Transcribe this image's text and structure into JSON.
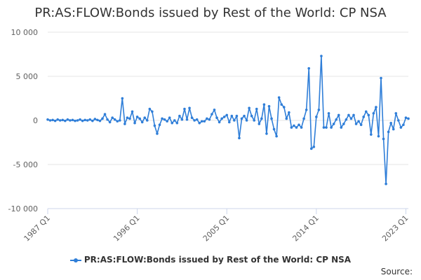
{
  "chart_data": {
    "type": "line",
    "title": "PR:AS:FLOW:Bonds issued by Rest of the World: CP NSA",
    "xlabel": "",
    "ylabel": "",
    "ylim": [
      -10000,
      10000
    ],
    "y_ticks": [
      10000,
      5000,
      0,
      -5000,
      -10000
    ],
    "y_tick_labels": [
      "10 000",
      "5 000",
      "0",
      "-5 000",
      "-10 000"
    ],
    "x_tick_labels": [
      "1987 Q1",
      "1996 Q1",
      "2005 Q1",
      "2014 Q1",
      "2023 Q1"
    ],
    "x_tick_index": [
      0,
      36,
      72,
      108,
      144
    ],
    "grid": "horizontal",
    "legend_position": "bottom",
    "series_color": "#2f7ed8",
    "series": [
      {
        "name": "PR:AS:FLOW:Bonds issued by Rest of the World: CP NSA",
        "x_start": "1987 Q1",
        "x_end": "2023 Q2",
        "values": [
          100,
          0,
          50,
          -50,
          100,
          0,
          50,
          -50,
          100,
          0,
          50,
          -50,
          0,
          100,
          -50,
          50,
          0,
          100,
          -50,
          150,
          50,
          -50,
          200,
          700,
          100,
          -200,
          300,
          100,
          -100,
          0,
          2500,
          -400,
          300,
          200,
          1000,
          -300,
          400,
          200,
          -200,
          300,
          0,
          1300,
          1000,
          -600,
          -1500,
          -500,
          200,
          100,
          -100,
          300,
          -300,
          0,
          -300,
          500,
          100,
          1300,
          100,
          1400,
          300,
          0,
          100,
          -300,
          -100,
          -100,
          200,
          100,
          700,
          1200,
          300,
          -200,
          200,
          400,
          600,
          -200,
          500,
          0,
          500,
          -2000,
          200,
          500,
          0,
          1400,
          500,
          0,
          1300,
          -400,
          200,
          1800,
          -1500,
          1600,
          200,
          -1000,
          -1800,
          2600,
          1800,
          1500,
          200,
          900,
          -800,
          -600,
          -800,
          -500,
          -800,
          200,
          1200,
          5900,
          -3200,
          -3000,
          400,
          1200,
          7300,
          -800,
          -800,
          800,
          -800,
          -400,
          100,
          600,
          -800,
          -400,
          100,
          600,
          200,
          600,
          -400,
          -100,
          -500,
          400,
          1000,
          600,
          -1600,
          800,
          1500,
          -1800,
          4800,
          -2100,
          -7200,
          -1300,
          -300,
          -1000,
          800,
          0,
          -800,
          -500,
          300,
          200
        ]
      }
    ]
  },
  "legend": {
    "label": "PR:AS:FLOW:Bonds issued by Rest of the World: CP NSA"
  },
  "source": {
    "label": "Source:"
  }
}
